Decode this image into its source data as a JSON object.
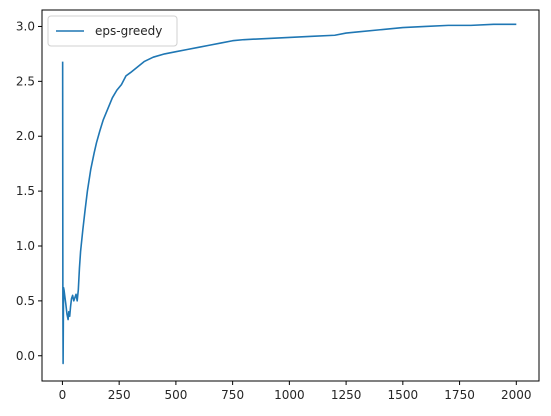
{
  "chart_data": {
    "type": "line",
    "title": "",
    "xlabel": "",
    "ylabel": "",
    "xlim": [
      -90,
      2100
    ],
    "ylim": [
      -0.23,
      3.15
    ],
    "grid": false,
    "legend_placement": "top-left",
    "x_ticks": [
      0,
      250,
      500,
      750,
      1000,
      1250,
      1500,
      1750,
      2000
    ],
    "x_tick_labels": [
      "0",
      "250",
      "500",
      "750",
      "1000",
      "1250",
      "1500",
      "1750",
      "2000"
    ],
    "y_ticks": [
      0.0,
      0.5,
      1.0,
      1.5,
      2.0,
      2.5,
      3.0
    ],
    "y_tick_labels": [
      "0.0",
      "0.5",
      "1.0",
      "1.5",
      "2.0",
      "2.5",
      "3.0"
    ],
    "series": [
      {
        "name": "eps-greedy",
        "color": "#1f77b4",
        "x": [
          1,
          2,
          3,
          4,
          5,
          7,
          10,
          15,
          20,
          25,
          28,
          32,
          36,
          40,
          45,
          50,
          55,
          60,
          65,
          70,
          75,
          80,
          90,
          100,
          110,
          125,
          140,
          150,
          165,
          180,
          200,
          220,
          240,
          260,
          280,
          300,
          330,
          360,
          400,
          450,
          500,
          550,
          600,
          650,
          700,
          750,
          800,
          900,
          1000,
          1100,
          1200,
          1250,
          1300,
          1400,
          1500,
          1600,
          1700,
          1800,
          1900,
          2000
        ],
        "y": [
          2.68,
          0.5,
          -0.07,
          0.3,
          0.62,
          0.6,
          0.55,
          0.47,
          0.38,
          0.33,
          0.4,
          0.36,
          0.45,
          0.52,
          0.55,
          0.5,
          0.53,
          0.56,
          0.5,
          0.6,
          0.8,
          0.95,
          1.15,
          1.33,
          1.5,
          1.7,
          1.85,
          1.94,
          2.05,
          2.15,
          2.25,
          2.35,
          2.42,
          2.47,
          2.55,
          2.58,
          2.63,
          2.68,
          2.72,
          2.75,
          2.77,
          2.79,
          2.81,
          2.83,
          2.85,
          2.87,
          2.88,
          2.89,
          2.9,
          2.91,
          2.92,
          2.94,
          2.95,
          2.97,
          2.99,
          3.0,
          3.01,
          3.01,
          3.02,
          3.02
        ]
      }
    ]
  }
}
